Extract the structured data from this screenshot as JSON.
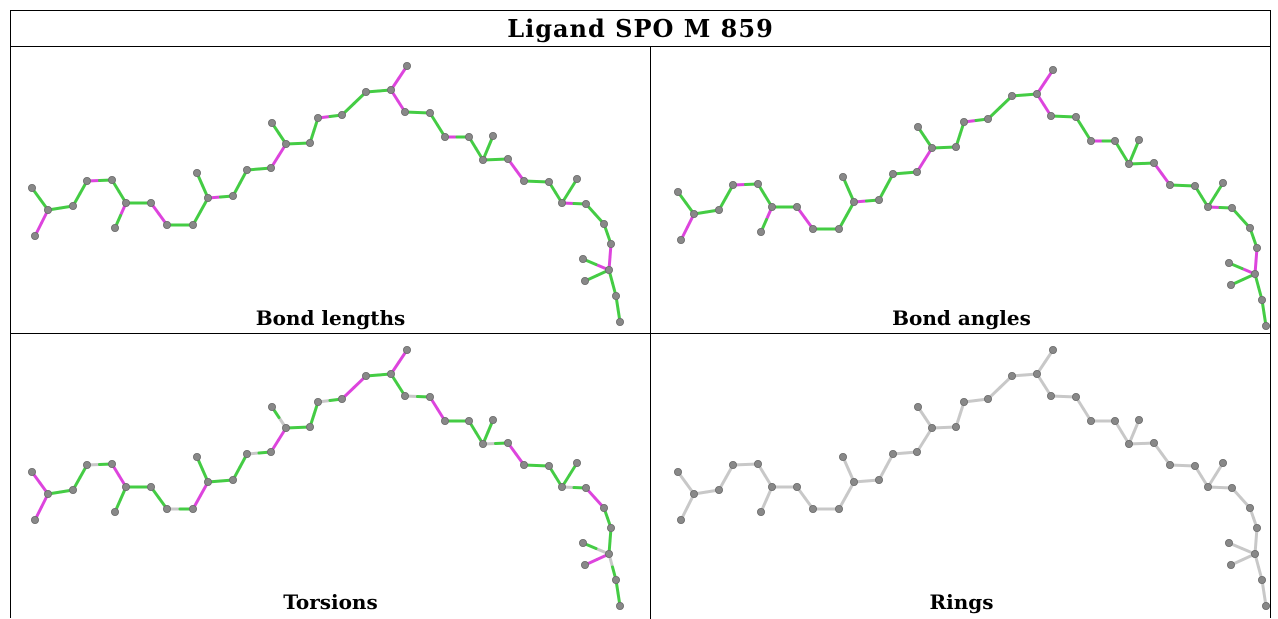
{
  "title": "Ligand SPO M 859",
  "colors": {
    "green": "#44cc44",
    "magenta": "#dd44dd",
    "grey_bond": "#c8c8c8",
    "atom": "#888888"
  },
  "panels": [
    {
      "caption": "Bond lengths",
      "color_scheme": "green-magenta"
    },
    {
      "caption": "Bond angles",
      "color_scheme": "green-magenta"
    },
    {
      "caption": "Torsions",
      "color_scheme": "green-magenta-grey"
    },
    {
      "caption": "Rings",
      "color_scheme": "grey"
    }
  ]
}
